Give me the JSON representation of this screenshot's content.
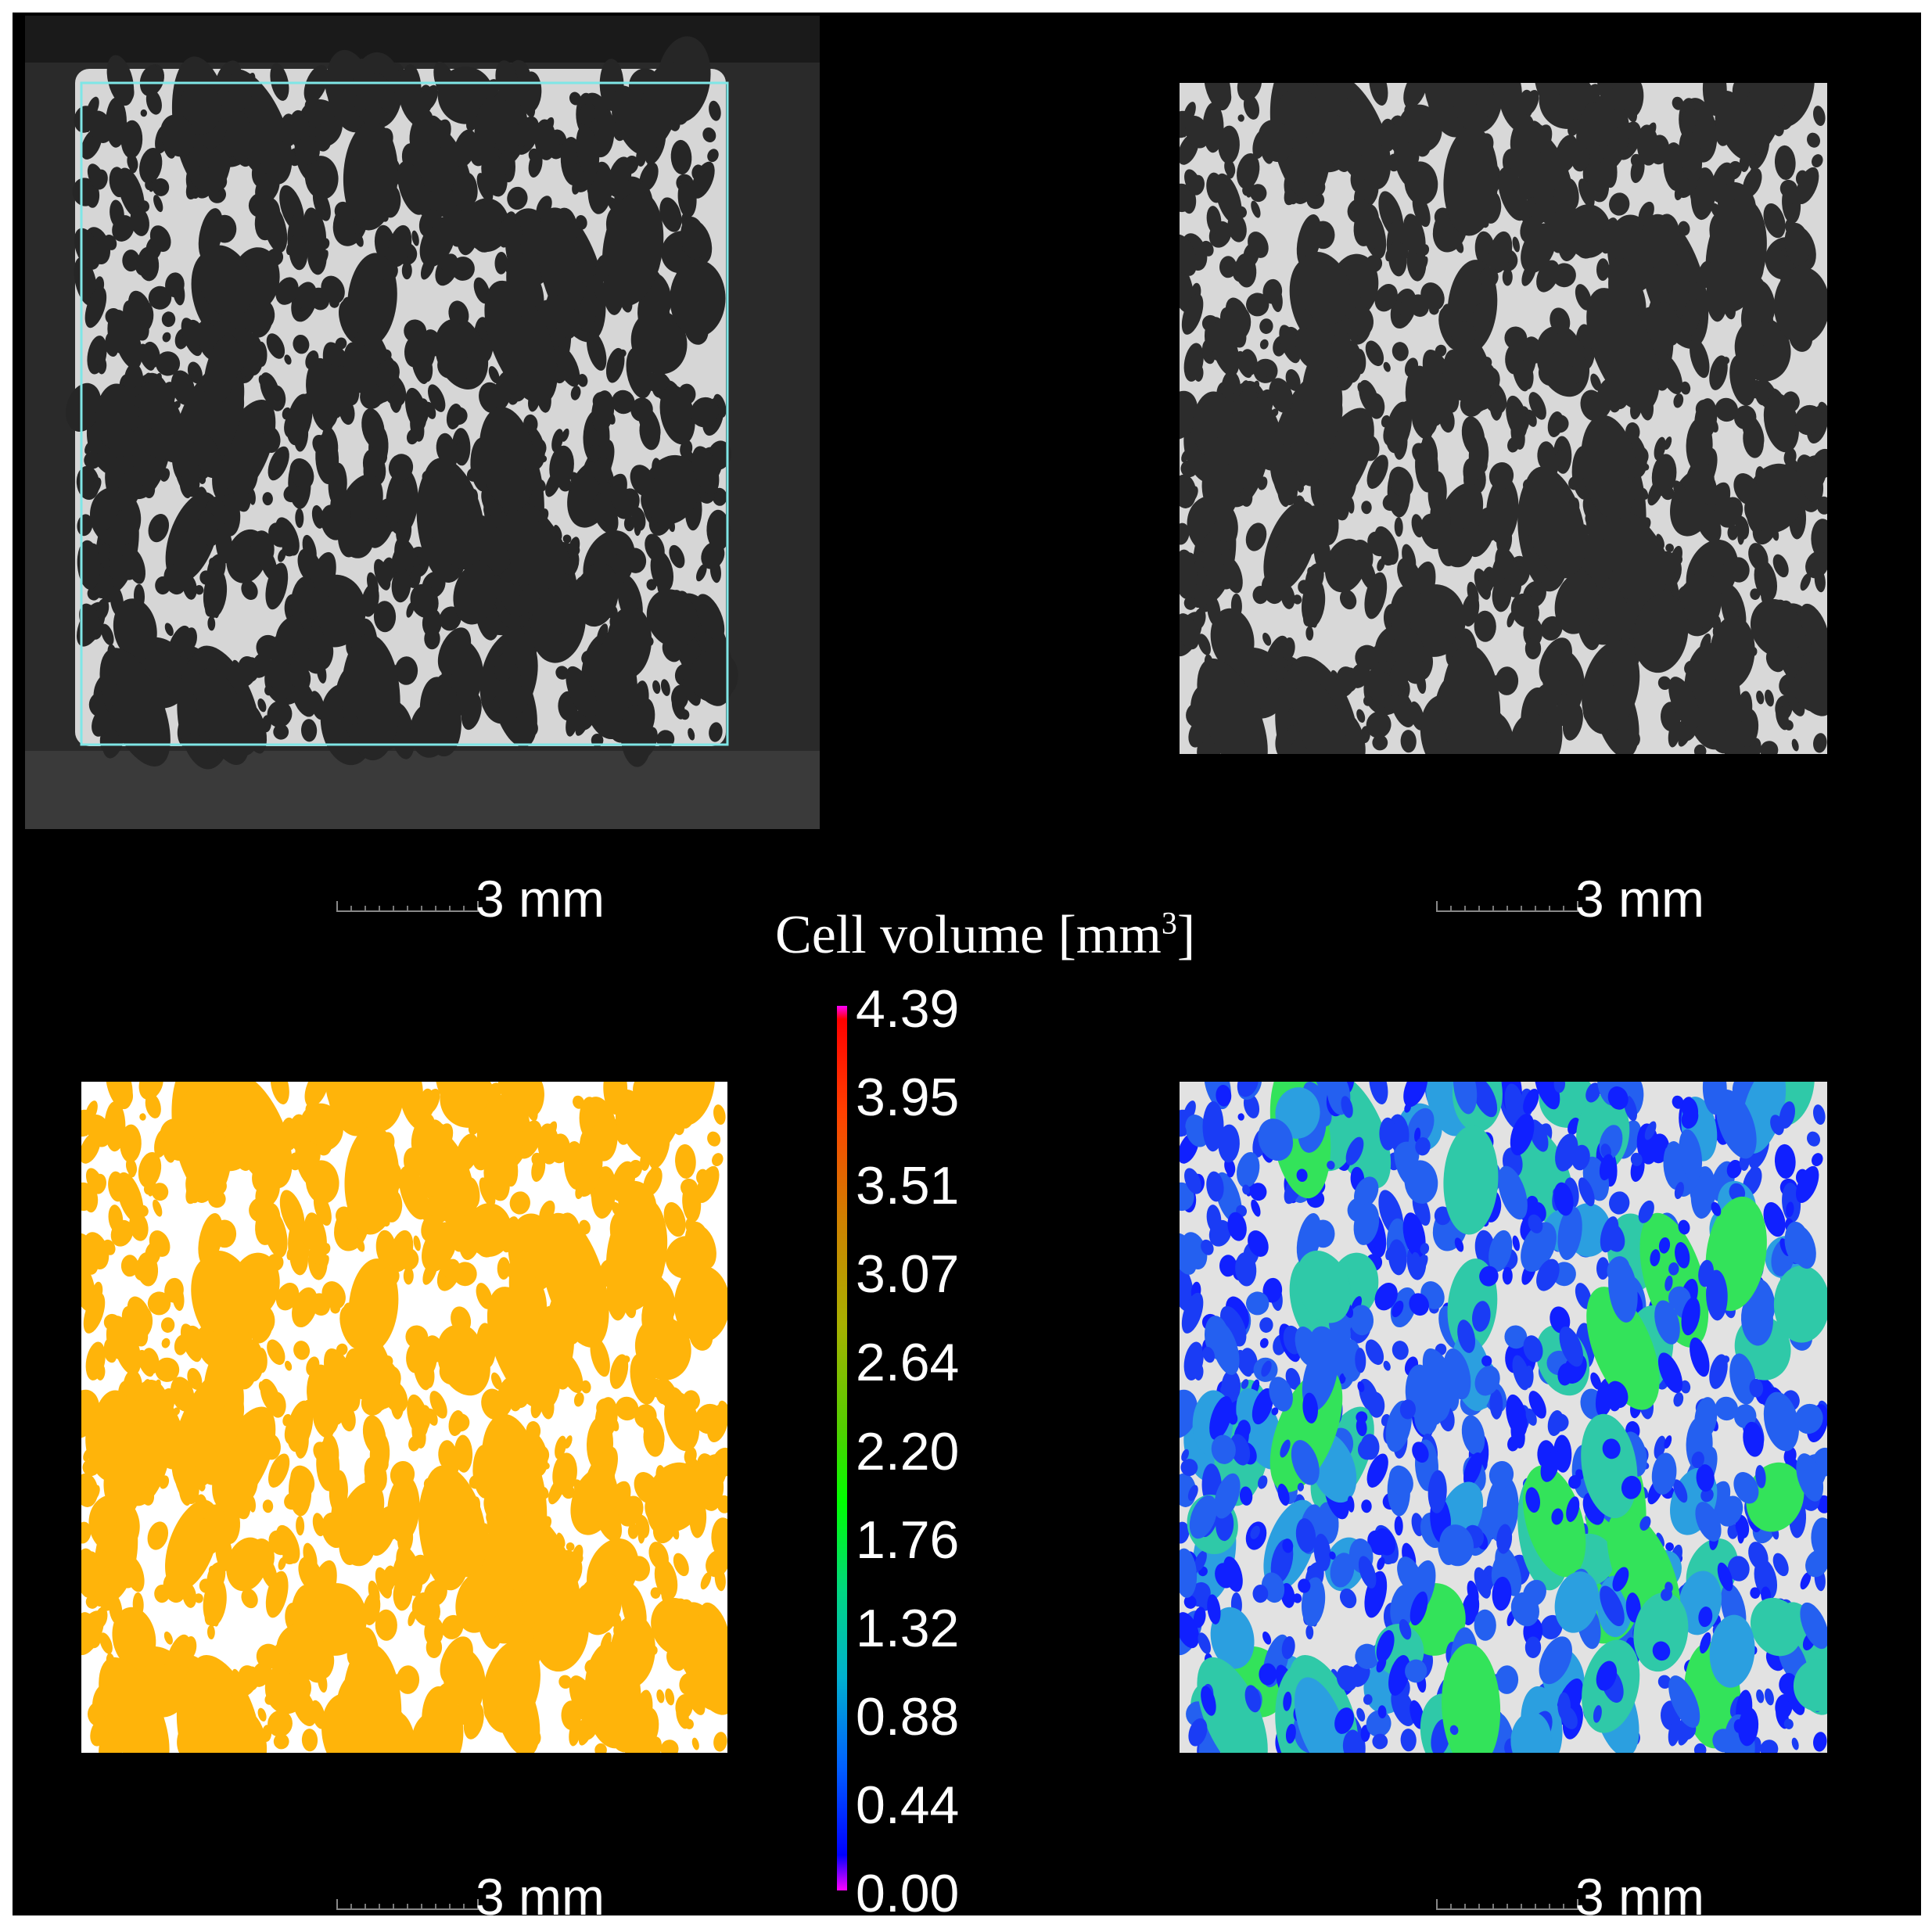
{
  "panels": [
    {
      "id": "ct-raw",
      "scale_label": "3 mm"
    },
    {
      "id": "ct-cropped",
      "scale_label": "3 mm"
    },
    {
      "id": "segmented",
      "scale_label": "3 mm",
      "color": "#ffb40a"
    },
    {
      "id": "cell-volume-map",
      "scale_label": "3 mm"
    }
  ],
  "colorbar": {
    "title": "Cell volume [mm",
    "title_sup": "3",
    "title_end": "]",
    "ticks": [
      "4.39",
      "3.95",
      "3.51",
      "3.07",
      "2.64",
      "2.20",
      "1.76",
      "1.32",
      "0.88",
      "0.44",
      "0.00"
    ],
    "min": 0.0,
    "max": 4.39
  }
}
